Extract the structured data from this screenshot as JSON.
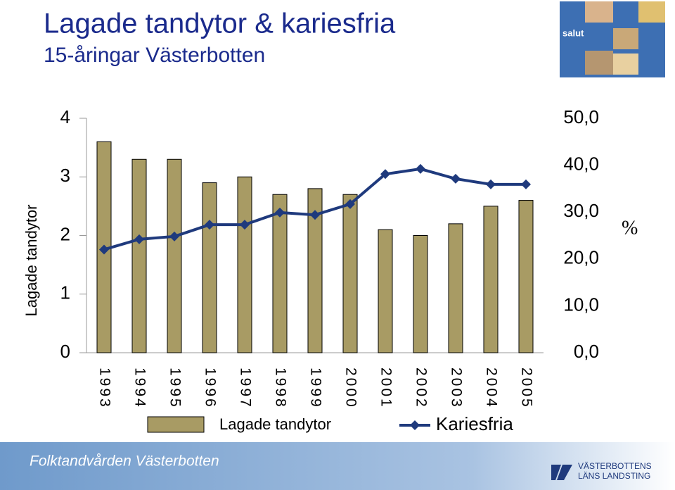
{
  "chart_data": {
    "type": "combo",
    "title": "Lagade tandytor & kariesfria",
    "subtitle": "15-åringar Västerbotten",
    "y_label": "Lagade tandytor",
    "y2_label": "%",
    "categories": [
      "1993",
      "1994",
      "1995",
      "1996",
      "1997",
      "1998",
      "1999",
      "2000",
      "2001",
      "2002",
      "2003",
      "2004",
      "2005"
    ],
    "series": [
      {
        "name": "Lagade tandytor",
        "type": "bar",
        "color": "#a89b64",
        "values": [
          3.6,
          3.3,
          3.3,
          2.9,
          3.0,
          2.7,
          2.8,
          2.7,
          2.1,
          2.0,
          2.2,
          2.5,
          2.6
        ]
      },
      {
        "name": "Kariesfria",
        "type": "line",
        "axis": "y2",
        "color": "#1f3a7d",
        "values": [
          22,
          24.2,
          24.8,
          27.3,
          27.3,
          29.9,
          29.4,
          31.7,
          38.1,
          39.2,
          37.1,
          35.9,
          35.9
        ]
      }
    ],
    "ylim": [
      0,
      4
    ],
    "yticks": [
      0,
      1,
      2,
      3,
      4
    ],
    "y2lim": [
      0,
      50
    ],
    "y2ticks": [
      {
        "value": 0,
        "label": "0,0"
      },
      {
        "value": 10,
        "label": "10,0"
      },
      {
        "value": 20,
        "label": "20,0"
      },
      {
        "value": 30,
        "label": "30,0"
      },
      {
        "value": 40,
        "label": "40,0"
      },
      {
        "value": 50,
        "label": "50,0"
      }
    ]
  },
  "footer": {
    "text": "Folktandvården Västerbotten",
    "logo_line1": "VÄSTERBOTTENS",
    "logo_line2": "LÄNS LANDSTING"
  },
  "badge": "salut"
}
